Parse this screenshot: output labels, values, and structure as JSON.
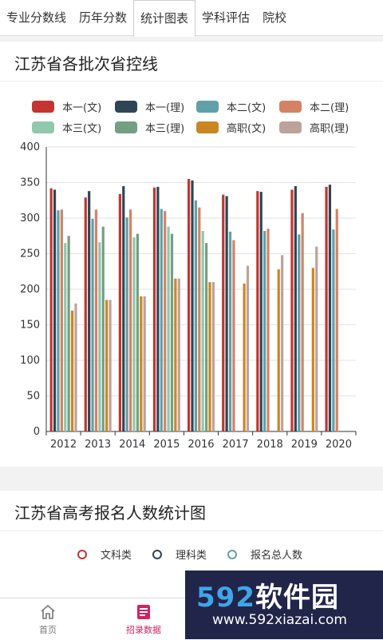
{
  "tabs": [
    "专业分数线",
    "历年分数",
    "统计图表",
    "学科评估",
    "院校"
  ],
  "card1": {
    "title": "江苏省各批次省控线"
  },
  "legend": [
    {
      "label": "本一(文)",
      "color": "#c23531"
    },
    {
      "label": "本一(理)",
      "color": "#2f4554"
    },
    {
      "label": "本二(文)",
      "color": "#61a0a8"
    },
    {
      "label": "本二(理)",
      "color": "#d48265"
    },
    {
      "label": "本三(文)",
      "color": "#91c7ae"
    },
    {
      "label": "本三(理)",
      "color": "#749f83"
    },
    {
      "label": "高职(文)",
      "color": "#ca8622"
    },
    {
      "label": "高职(理)",
      "color": "#bda29a"
    }
  ],
  "chart_data": {
    "type": "bar",
    "categories": [
      "2012",
      "2013",
      "2014",
      "2015",
      "2016",
      "2017",
      "2018",
      "2019",
      "2020"
    ],
    "ylim": [
      0,
      400
    ],
    "yticks": [
      0,
      50,
      100,
      150,
      200,
      250,
      300,
      350,
      400
    ],
    "series": [
      {
        "name": "本一(文)",
        "values": [
          342,
          329,
          334,
          343,
          355,
          333,
          338,
          340,
          344
        ]
      },
      {
        "name": "本一(理)",
        "values": [
          340,
          338,
          345,
          344,
          353,
          331,
          337,
          345,
          347
        ]
      },
      {
        "name": "本二(文)",
        "values": [
          311,
          299,
          301,
          313,
          325,
          281,
          282,
          277,
          284
        ]
      },
      {
        "name": "本二(理)",
        "values": [
          312,
          312,
          312,
          310,
          315,
          269,
          285,
          307,
          313
        ]
      },
      {
        "name": "本三(文)",
        "values": [
          265,
          266,
          273,
          288,
          282,
          null,
          null,
          null,
          null
        ]
      },
      {
        "name": "本三(理)",
        "values": [
          275,
          288,
          278,
          278,
          265,
          null,
          null,
          null,
          null
        ]
      },
      {
        "name": "高职(文)",
        "values": [
          170,
          185,
          190,
          215,
          210,
          208,
          228,
          230,
          null
        ]
      },
      {
        "name": "高职(理)",
        "values": [
          180,
          185,
          190,
          215,
          210,
          233,
          248,
          260,
          null
        ]
      }
    ]
  },
  "card2": {
    "title": "江苏省高考报名人数统计图",
    "legend": [
      {
        "label": "文科类",
        "color": "#c23531"
      },
      {
        "label": "理科类",
        "color": "#2f4554"
      },
      {
        "label": "报名总人数",
        "color": "#61a0a8"
      }
    ]
  },
  "bottom_nav": [
    {
      "label": "首页",
      "icon": "home-icon"
    },
    {
      "label": "招录数据",
      "icon": "data-icon"
    }
  ],
  "watermark": {
    "title_main": "592",
    "title_rest": "软件园",
    "url": "www.592xiazai.com"
  }
}
